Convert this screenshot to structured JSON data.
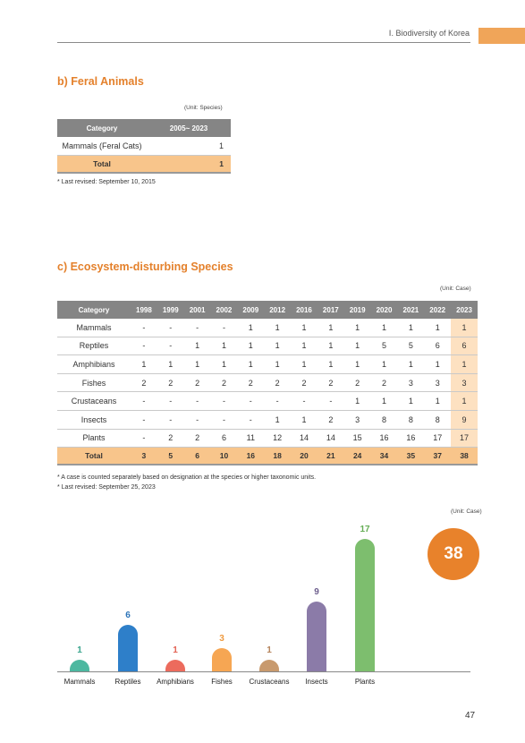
{
  "header": {
    "section": "Ⅰ. Biodiversity of Korea"
  },
  "feral": {
    "title": "b) Feral Animals",
    "unit": "(Unit: Species)",
    "columns": [
      "Category",
      "2005~ 2023"
    ],
    "rows": [
      {
        "label": "Mammals (Feral Cats)",
        "value": "1"
      }
    ],
    "total": {
      "label": "Total",
      "value": "1"
    },
    "note": "* Last revised: September 10, 2015"
  },
  "ecosystem": {
    "title": "c) Ecosystem-disturbing Species",
    "unit": "(Unit: Case)",
    "columns": [
      "Category",
      "1998",
      "1999",
      "2001",
      "2002",
      "2009",
      "2012",
      "2016",
      "2017",
      "2019",
      "2020",
      "2021",
      "2022",
      "2023"
    ],
    "rows": [
      {
        "label": "Mammals",
        "values": [
          "-",
          "-",
          "-",
          "-",
          "1",
          "1",
          "1",
          "1",
          "1",
          "1",
          "1",
          "1",
          "1"
        ]
      },
      {
        "label": "Reptiles",
        "values": [
          "-",
          "-",
          "1",
          "1",
          "1",
          "1",
          "1",
          "1",
          "1",
          "5",
          "5",
          "6",
          "6"
        ]
      },
      {
        "label": "Amphibians",
        "values": [
          "1",
          "1",
          "1",
          "1",
          "1",
          "1",
          "1",
          "1",
          "1",
          "1",
          "1",
          "1",
          "1"
        ]
      },
      {
        "label": "Fishes",
        "values": [
          "2",
          "2",
          "2",
          "2",
          "2",
          "2",
          "2",
          "2",
          "2",
          "2",
          "3",
          "3",
          "3"
        ]
      },
      {
        "label": "Crustaceans",
        "values": [
          "-",
          "-",
          "-",
          "-",
          "-",
          "-",
          "-",
          "-",
          "1",
          "1",
          "1",
          "1",
          "1"
        ]
      },
      {
        "label": "Insects",
        "values": [
          "-",
          "-",
          "-",
          "-",
          "-",
          "1",
          "1",
          "2",
          "3",
          "8",
          "8",
          "8",
          "9"
        ]
      },
      {
        "label": "Plants",
        "values": [
          "-",
          "2",
          "2",
          "6",
          "11",
          "12",
          "14",
          "14",
          "15",
          "16",
          "16",
          "17",
          "17"
        ]
      }
    ],
    "total": {
      "label": "Total",
      "values": [
        "3",
        "5",
        "6",
        "10",
        "16",
        "18",
        "20",
        "21",
        "24",
        "34",
        "35",
        "37",
        "38"
      ]
    },
    "notes": [
      "* A case is counted separately based on designation at the species or higher taxonomic units.",
      "* Last revised: September 25, 2023"
    ]
  },
  "chart_data": {
    "type": "bar",
    "unit": "(Unit: Case)",
    "categories": [
      "Mammals",
      "Reptiles",
      "Amphibians",
      "Fishes",
      "Crustaceans",
      "Insects",
      "Plants"
    ],
    "values": [
      1,
      6,
      1,
      3,
      1,
      9,
      17
    ],
    "colors": [
      "#4db8a0",
      "#2e7fc9",
      "#ec6b5d",
      "#f6a653",
      "#c89a6e",
      "#8b7ba8",
      "#7dbe6e"
    ],
    "value_label_colors": [
      "#3aa58e",
      "#2a73b8",
      "#e36152",
      "#ee9a3f",
      "#b5835a",
      "#6d5e8d",
      "#65ad55"
    ],
    "total": "38",
    "total_color": "#e8822b"
  },
  "page": {
    "number": "47"
  }
}
